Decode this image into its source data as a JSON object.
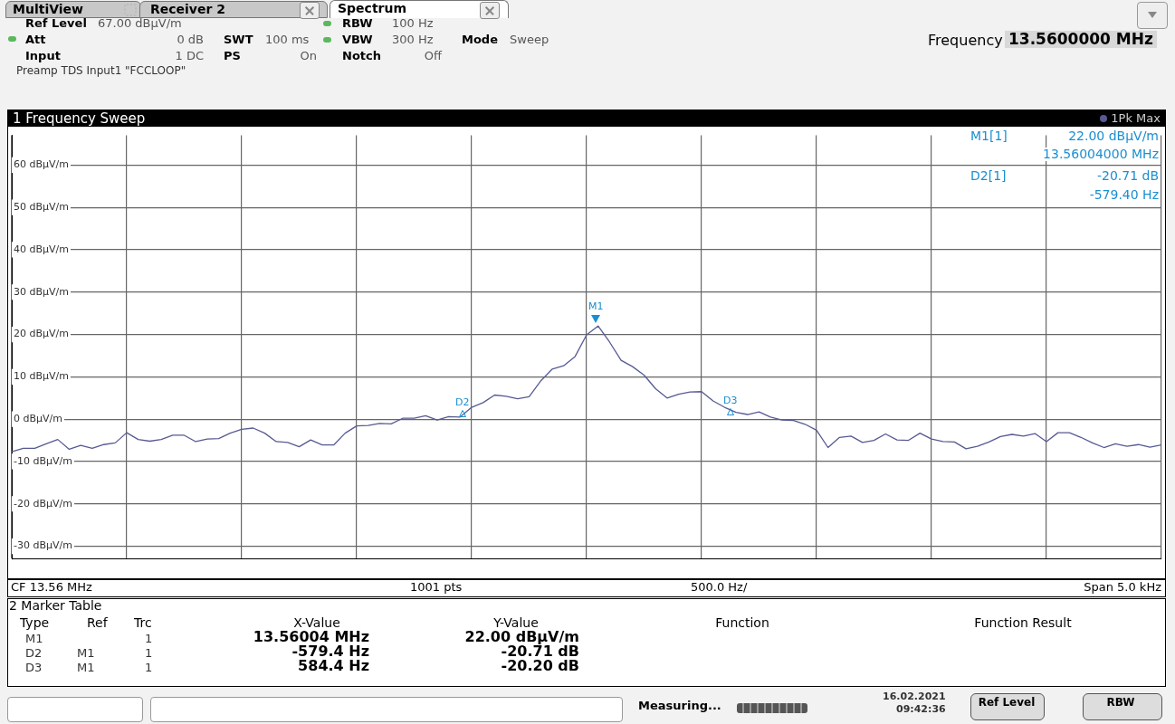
{
  "chart_data": {
    "type": "line",
    "title": "1 Frequency Sweep",
    "categories": [
      null,
      null,
      null,
      null,
      null,
      null,
      null,
      null,
      null,
      null,
      null,
      null,
      null,
      null,
      null,
      null,
      null,
      null,
      null,
      null,
      null,
      null,
      null,
      null,
      null,
      null,
      null,
      null,
      null,
      null,
      null,
      null,
      null,
      null,
      null,
      null,
      null,
      null,
      null,
      null,
      null,
      null,
      null,
      null,
      null,
      null,
      null,
      null,
      null,
      null,
      null,
      null,
      null,
      null,
      null,
      null,
      null,
      null,
      null,
      null,
      null,
      null,
      null,
      null,
      null,
      null,
      null,
      null,
      null,
      null,
      null,
      null,
      null,
      null,
      null,
      null,
      null,
      null,
      null,
      null,
      null,
      null,
      null,
      null,
      null,
      null,
      null,
      null,
      null,
      null,
      null,
      null,
      null,
      null,
      null,
      null,
      null,
      null,
      null,
      null,
      null
    ],
    "series": [
      {
        "name": "1Pk Max",
        "color": "#565a92",
        "values": [
          -7.7,
          -6.9,
          -6.9,
          -5.8,
          -4.8,
          -7.1,
          -6.2,
          -6.9,
          -6.0,
          -5.6,
          -3.2,
          -4.8,
          -5.2,
          -4.8,
          -3.8,
          -3.8,
          -5.3,
          -4.7,
          -4.6,
          -3.3,
          -2.4,
          -2.1,
          -3.3,
          -5.3,
          -5.5,
          -6.5,
          -4.9,
          -6.1,
          -6.1,
          -3.3,
          -1.6,
          -1.5,
          -1.0,
          -1.1,
          0.2,
          0.2,
          0.8,
          -0.2,
          0.6,
          0.5,
          2.8,
          3.9,
          5.7,
          5.4,
          4.8,
          5.3,
          9.0,
          11.8,
          12.6,
          14.8,
          19.9,
          22.0,
          18.2,
          13.9,
          12.4,
          10.4,
          7.2,
          5.0,
          5.9,
          6.4,
          6.5,
          4.3,
          2.8,
          1.6,
          1.1,
          1.7,
          0.5,
          -0.2,
          -0.3,
          -1.2,
          -2.6,
          -6.7,
          -4.3,
          -4.0,
          -5.5,
          -5.0,
          -3.5,
          -4.9,
          -5.0,
          -3.3,
          -4.7,
          -5.3,
          -5.4,
          -7.0,
          -6.4,
          -5.4,
          -4.1,
          -3.6,
          -4.0,
          -3.4,
          -5.3,
          -3.2,
          -3.2,
          -4.3,
          -5.6,
          -6.7,
          -5.8,
          -6.4,
          -6.0,
          -6.6,
          -6.1
        ]
      }
    ],
    "ylim": [
      -33,
      67
    ],
    "yticks": [
      {
        "value": -30,
        "label": "-30 dBµV/m"
      },
      {
        "value": -20,
        "label": "-20 dBµV/m"
      },
      {
        "value": -10,
        "label": "-10 dBµV/m"
      },
      {
        "value": 0,
        "label": "0 dBµV/m"
      },
      {
        "value": 10,
        "label": "10 dBµV/m"
      },
      {
        "value": 20,
        "label": "20 dBµV/m"
      },
      {
        "value": 30,
        "label": "30 dBµV/m"
      },
      {
        "value": 40,
        "label": "40 dBµV/m"
      },
      {
        "value": 50,
        "label": "50 dBµV/m"
      },
      {
        "value": 60,
        "label": "60 dBµV/m"
      }
    ],
    "grid": true,
    "legend": "top right",
    "annotations": [
      "MultiView",
      "Receiver 2",
      "Spectrum",
      "Ref Level",
      "67.00 dBµV/m",
      "Att",
      "0 dB",
      "SWT",
      "100 ms",
      "Input",
      "1 DC",
      "PS",
      "On",
      "RBW",
      "100 Hz",
      "VBW",
      "300 Hz",
      "Notch",
      "Off",
      "Mode",
      "Sweep",
      "Preamp TDS Input1 \"FCCLOOP\"",
      "Frequency",
      "13.5600000 MHz",
      "M1[1]",
      "22.00 dBµV/m",
      "13.56004000 MHz",
      "D2[1]",
      "-20.71 dB",
      "-579.40 Hz",
      "CF 13.56 MHz",
      "1001 pts",
      "500.0 Hz/",
      "Span 5.0 kHz",
      "2 Marker Table",
      "Type",
      "Ref",
      "Trc",
      "X-Value",
      "Y-Value",
      "Function",
      "Function Result",
      "M1",
      "1",
      "13.56004 MHz",
      "22.00 dBµV/m",
      "D2",
      "M1",
      "1",
      "-579.4 Hz",
      "-20.71 dB",
      "D3",
      "M1",
      "1",
      "584.4 Hz",
      "-20.20 dB",
      "Measuring...",
      "16.02.2021",
      "09:42:36",
      "Ref Level",
      "RBW",
      {
        "text": "M1",
        "y": 22
      },
      {
        "text": "D2",
        "y": 1.29
      },
      {
        "text": "D3",
        "y": 1.8
      }
    ]
  }
}
